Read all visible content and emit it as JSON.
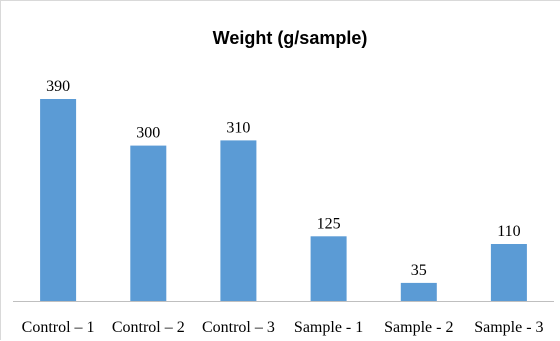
{
  "chart_data": {
    "type": "bar",
    "title": "Weight  (g/sample)",
    "categories": [
      "Control – 1",
      "Control – 2",
      "Control – 3",
      "Sample - 1",
      "Sample - 2",
      "Sample - 3"
    ],
    "values": [
      390,
      300,
      310,
      125,
      35,
      110
    ],
    "xlabel": "",
    "ylabel": "",
    "ylim": [
      0,
      420
    ],
    "grid": false,
    "legend": "none",
    "bar_color": "#5b9bd5",
    "axis_color": "#bfbfbf",
    "data_labels": true
  }
}
